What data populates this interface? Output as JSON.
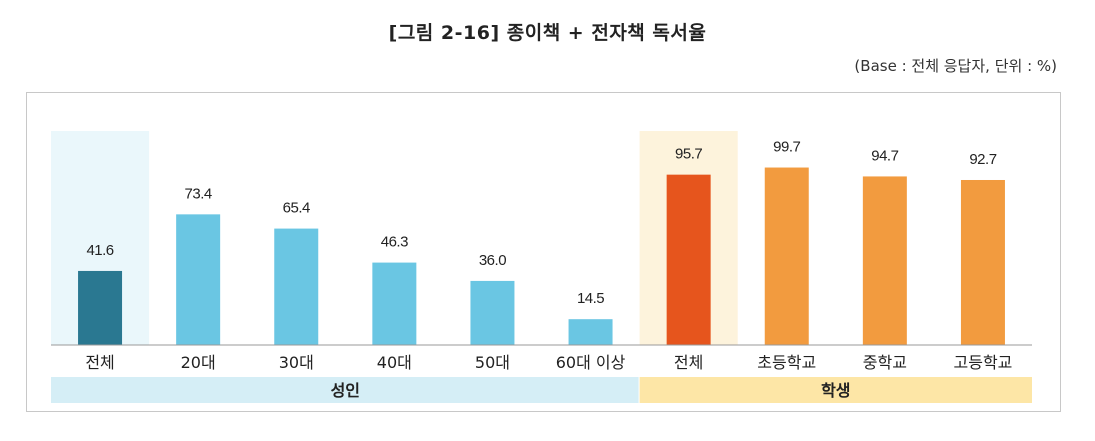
{
  "title": "[그림 2-16] 종이책 + 전자책 독서율",
  "unit_note": "(Base : 전체 응답자, 단위 : %)",
  "colors": {
    "adult_total": "#2a7891",
    "adult": "#6ac6e3",
    "student_total": "#e6551d",
    "student": "#f29b3f",
    "adult_highlight": "#eaf7fb",
    "student_highlight": "#fdf3dc",
    "adult_group_band": "#d5eef6",
    "student_group_band": "#fde6a6"
  },
  "chart_data": {
    "type": "bar",
    "categories": [
      "전체",
      "20대",
      "30대",
      "40대",
      "50대",
      "60대 이상",
      "전체",
      "초등학교",
      "중학교",
      "고등학교"
    ],
    "values": [
      41.6,
      73.4,
      65.4,
      46.3,
      36.0,
      14.5,
      95.7,
      99.7,
      94.7,
      92.7
    ],
    "value_labels": [
      "41.6",
      "73.4",
      "65.4",
      "46.3",
      "36.0",
      "14.5",
      "95.7",
      "99.7",
      "94.7",
      "92.7"
    ],
    "groups": [
      {
        "label": "성인",
        "start": 0,
        "end": 5
      },
      {
        "label": "학생",
        "start": 6,
        "end": 9
      }
    ],
    "highlighted": [
      0,
      6
    ],
    "ylim": [
      0,
      100
    ],
    "grid": false,
    "legend": "none"
  }
}
